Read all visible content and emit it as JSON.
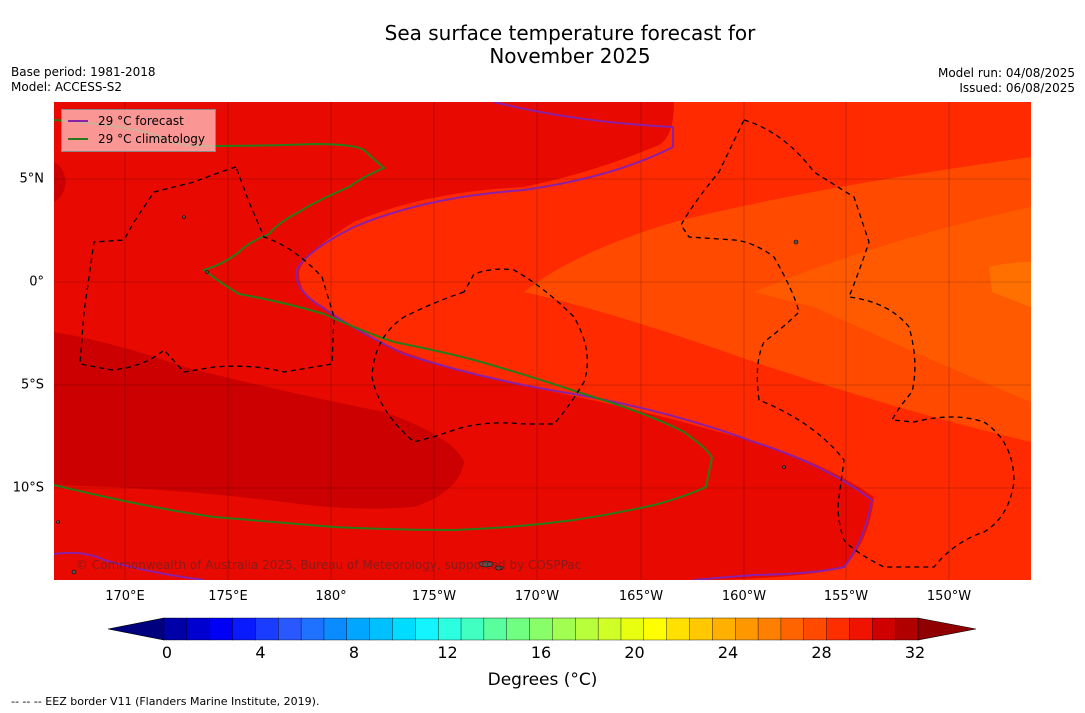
{
  "title_line1": "Sea surface temperature forecast for",
  "title_line2": "November 2025",
  "base_period": "Base period: 1981-2018",
  "model": "Model: ACCESS-S2",
  "model_run": "Model run: 04/08/2025",
  "issued": "Issued: 06/08/2025",
  "legend": {
    "forecast_label": "29 °C  forecast",
    "forecast_color": "#8b1fa8",
    "climatology_label": "29 °C  climatology",
    "climatology_color": "#2a7a1a"
  },
  "lon_labels": [
    "170°E",
    "175°E",
    "180°",
    "175°W",
    "170°W",
    "165°W",
    "160°W",
    "155°W",
    "150°W"
  ],
  "lat_labels": [
    "5°N",
    "0°",
    "5°S",
    "10°S"
  ],
  "credit": "© Commonwealth of Australia 2025, Bureau of Meteorology, supported by COSPPac",
  "colorbar": {
    "ticks": [
      "0",
      "4",
      "8",
      "12",
      "16",
      "20",
      "24",
      "28",
      "32"
    ],
    "label": "Degrees (°C)",
    "colors": [
      "#00007f",
      "#0000a8",
      "#0000d0",
      "#0000f5",
      "#0a1aff",
      "#1a3cff",
      "#2a58ff",
      "#1f72ff",
      "#0a8cff",
      "#00a6ff",
      "#00c0ff",
      "#00dcff",
      "#14f4ff",
      "#2cffe0",
      "#40ffc0",
      "#58ff9c",
      "#70ff80",
      "#88ff68",
      "#a0ff50",
      "#b8ff3c",
      "#d0ff28",
      "#e8ff10",
      "#ffff00",
      "#ffe000",
      "#ffc800",
      "#ffb000",
      "#ff9800",
      "#ff8000",
      "#ff6400",
      "#ff4a00",
      "#ff2e00",
      "#f01400",
      "#d00000",
      "#b00000",
      "#900000"
    ]
  },
  "footnote": "--  --  -- EEZ border V11 (Flanders Marine Institute, 2019)."
}
